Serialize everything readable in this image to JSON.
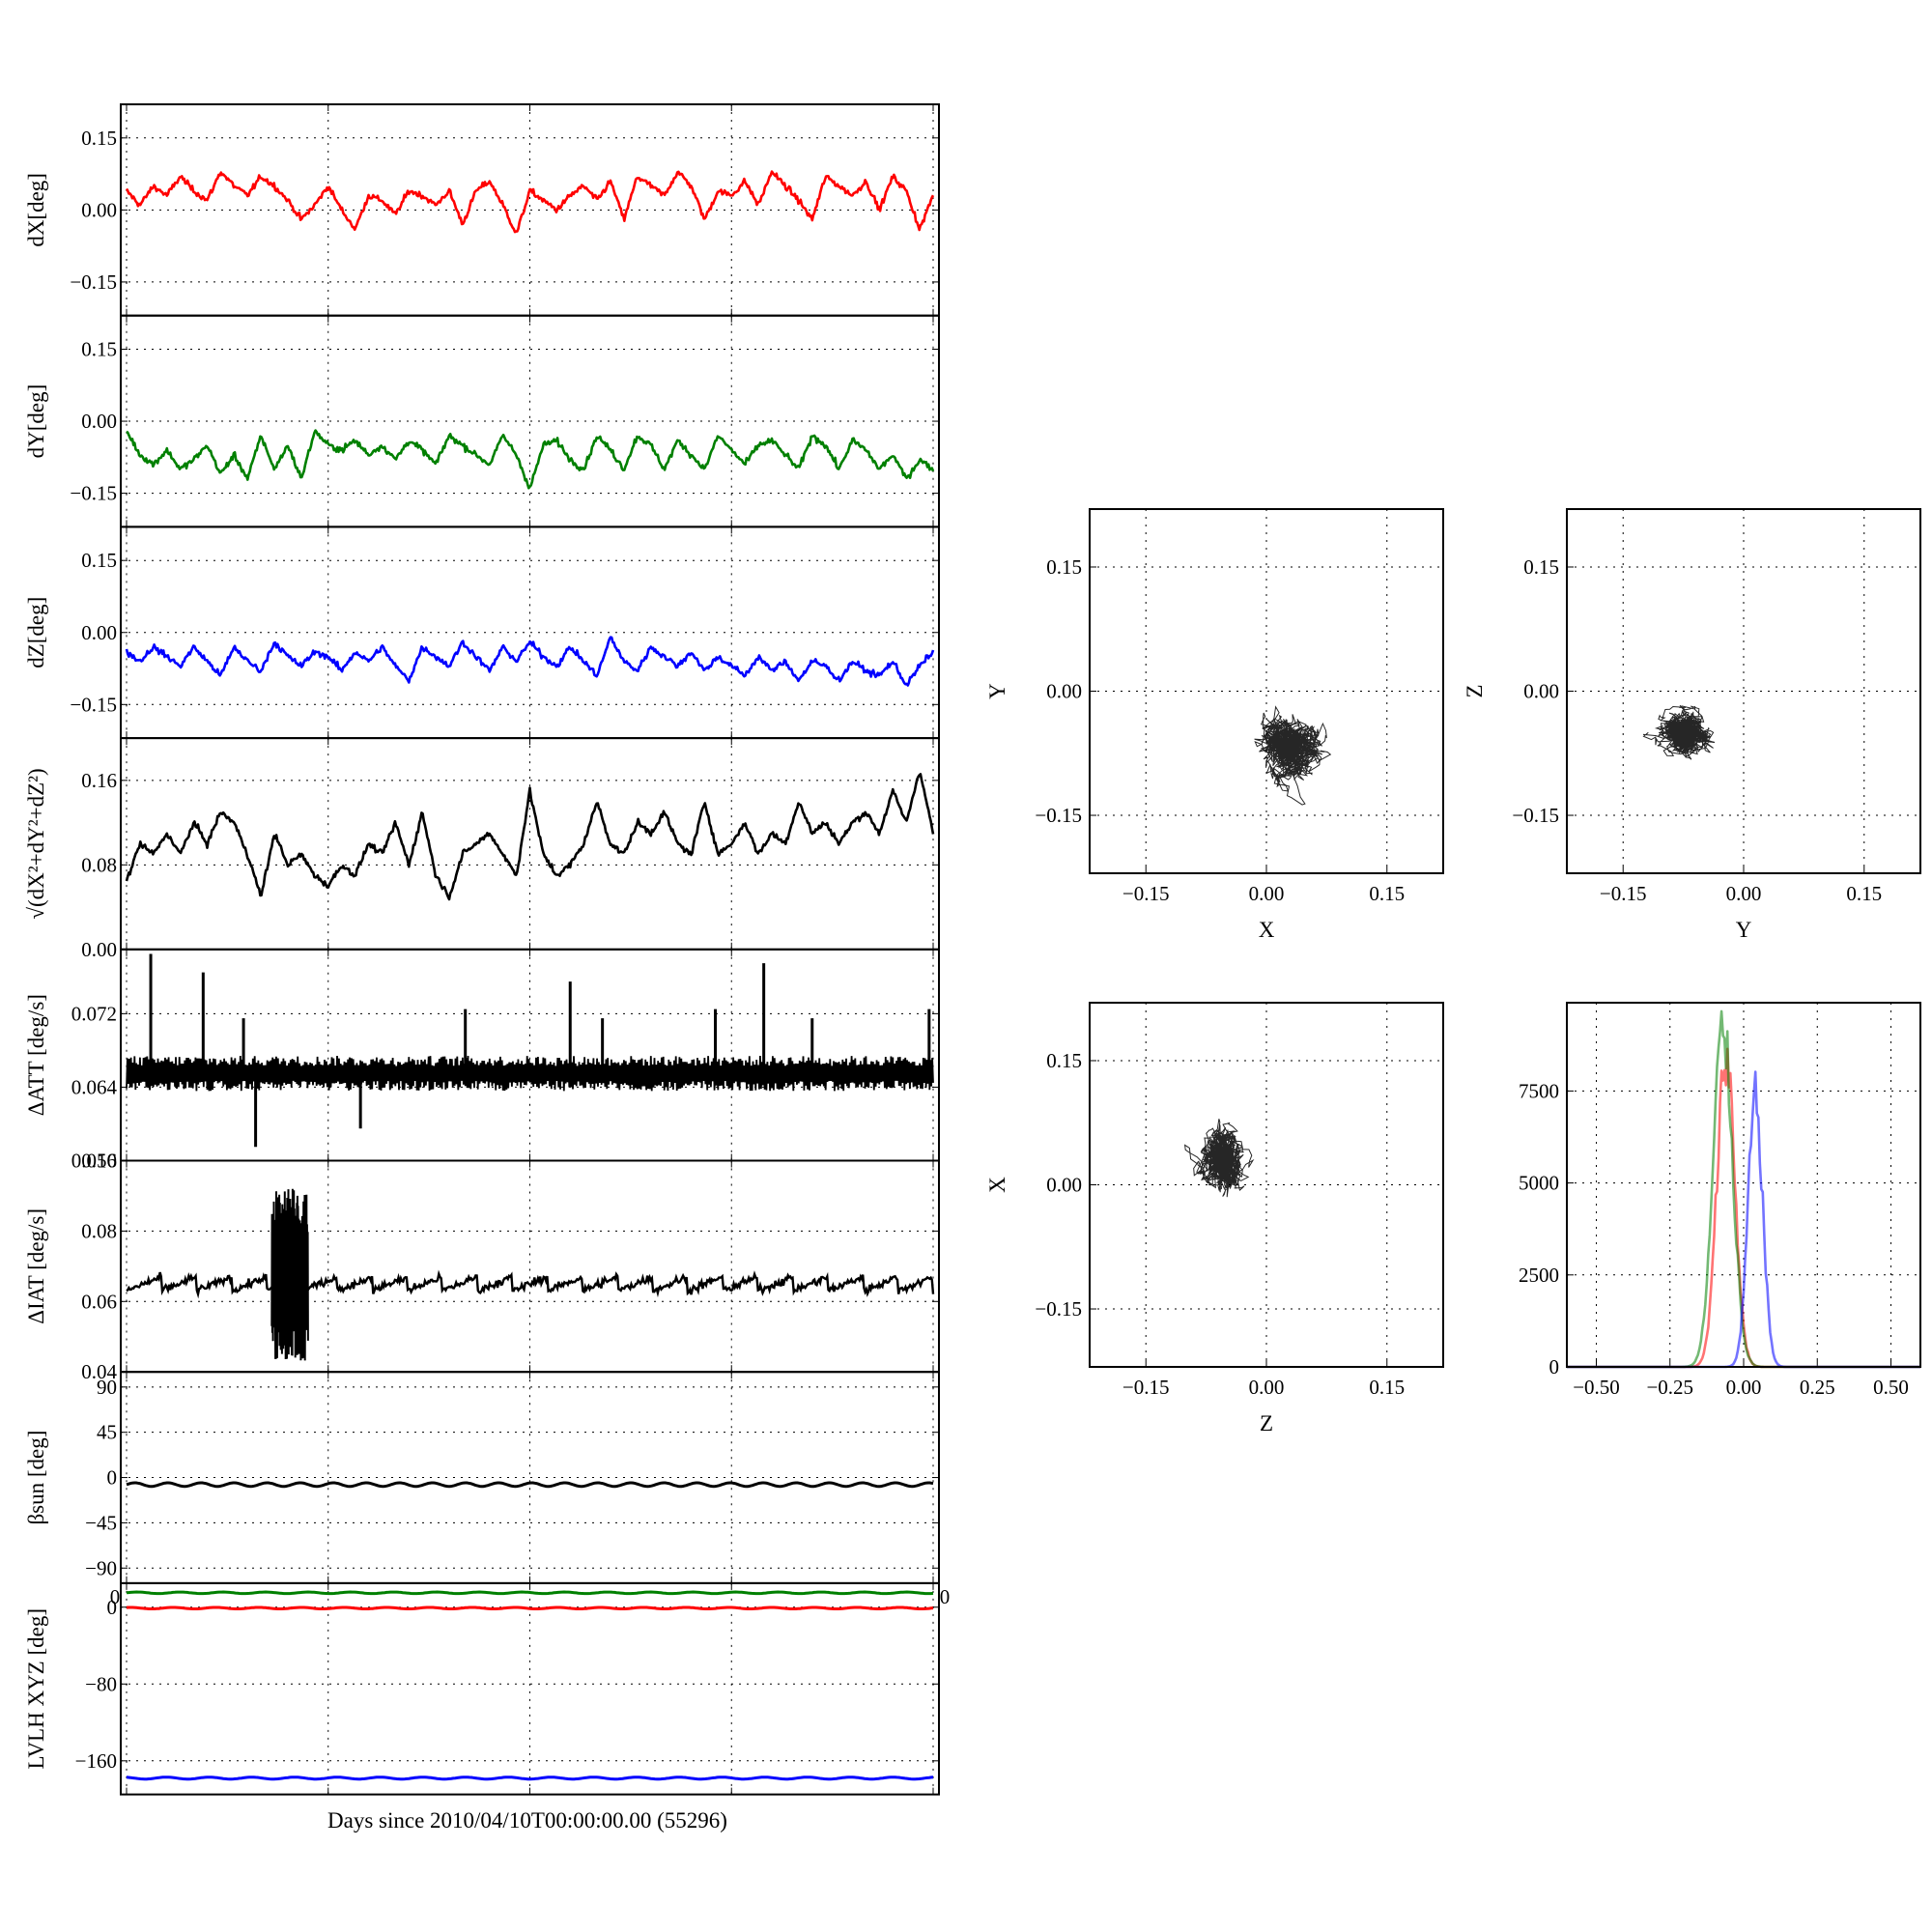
{
  "xlabel": "Days since 2010/04/10T00:00:00.00 (55296)",
  "colors": {
    "x": "#ff0000",
    "y": "#008000",
    "z": "#0000ff",
    "k": "#000000"
  },
  "chart_data": [
    {
      "type": "line",
      "ylabel": "dX[deg]",
      "ylim": [
        -0.22,
        0.22
      ],
      "yticks": [
        0.15,
        0.0,
        -0.15
      ],
      "ytick_labels": [
        "0.15",
        "0.00",
        "−0.15"
      ],
      "grid": true,
      "series": [
        {
          "color": "#ff0000",
          "values": [
            0.04,
            0.01,
            0.05,
            0.03,
            0.07,
            0.04,
            0.02,
            0.08,
            0.05,
            0.03,
            0.07,
            0.05,
            0.02,
            -0.02,
            0.01,
            0.05,
            0.0,
            -0.04,
            0.03,
            0.02,
            -0.01,
            0.04,
            0.03,
            0.01,
            0.04,
            -0.03,
            0.04,
            0.06,
            0.01,
            -0.05,
            0.04,
            0.02,
            0.0,
            0.03,
            0.05,
            0.02,
            0.06,
            -0.02,
            0.07,
            0.05,
            0.03,
            0.08,
            0.05,
            -0.02,
            0.04,
            0.03,
            0.06,
            0.01,
            0.08,
            0.05,
            0.02,
            -0.02,
            0.07,
            0.05,
            0.03,
            0.06,
            0.0,
            0.07,
            0.04,
            -0.04,
            0.03
          ]
        }
      ]
    },
    {
      "type": "line",
      "ylabel": "dY[deg]",
      "ylim": [
        -0.22,
        0.22
      ],
      "yticks": [
        0.15,
        0.0,
        -0.15
      ],
      "ytick_labels": [
        "0.15",
        "0.00",
        "−0.15"
      ],
      "grid": true,
      "series": [
        {
          "color": "#008000",
          "values": [
            -0.02,
            -0.07,
            -0.09,
            -0.06,
            -0.1,
            -0.08,
            -0.05,
            -0.11,
            -0.07,
            -0.12,
            -0.03,
            -0.1,
            -0.05,
            -0.12,
            -0.02,
            -0.05,
            -0.06,
            -0.04,
            -0.07,
            -0.05,
            -0.08,
            -0.04,
            -0.06,
            -0.09,
            -0.03,
            -0.05,
            -0.07,
            -0.09,
            -0.03,
            -0.07,
            -0.14,
            -0.05,
            -0.04,
            -0.08,
            -0.1,
            -0.03,
            -0.06,
            -0.1,
            -0.03,
            -0.05,
            -0.1,
            -0.04,
            -0.07,
            -0.1,
            -0.03,
            -0.06,
            -0.09,
            -0.05,
            -0.04,
            -0.07,
            -0.1,
            -0.03,
            -0.05,
            -0.1,
            -0.04,
            -0.06,
            -0.1,
            -0.07,
            -0.12,
            -0.08,
            -0.1
          ]
        }
      ]
    },
    {
      "type": "line",
      "ylabel": "dZ[deg]",
      "ylim": [
        -0.22,
        0.22
      ],
      "yticks": [
        0.15,
        0.0,
        -0.15
      ],
      "ytick_labels": [
        "0.15",
        "0.00",
        "−0.15"
      ],
      "grid": true,
      "series": [
        {
          "color": "#0000ff",
          "values": [
            -0.04,
            -0.06,
            -0.03,
            -0.05,
            -0.07,
            -0.03,
            -0.06,
            -0.09,
            -0.03,
            -0.06,
            -0.08,
            -0.02,
            -0.05,
            -0.07,
            -0.04,
            -0.05,
            -0.08,
            -0.04,
            -0.06,
            -0.03,
            -0.07,
            -0.1,
            -0.03,
            -0.05,
            -0.07,
            -0.02,
            -0.05,
            -0.08,
            -0.03,
            -0.06,
            -0.02,
            -0.05,
            -0.07,
            -0.03,
            -0.06,
            -0.09,
            -0.01,
            -0.06,
            -0.08,
            -0.03,
            -0.05,
            -0.07,
            -0.04,
            -0.08,
            -0.05,
            -0.07,
            -0.09,
            -0.05,
            -0.08,
            -0.06,
            -0.1,
            -0.06,
            -0.07,
            -0.1,
            -0.06,
            -0.08,
            -0.09,
            -0.06,
            -0.11,
            -0.07,
            -0.04
          ]
        }
      ]
    },
    {
      "type": "line",
      "ylabel": "√(dX²+dY²+dZ²)",
      "ylim": [
        0.0,
        0.2
      ],
      "yticks": [
        0.16,
        0.08,
        0.0
      ],
      "ytick_labels": [
        "0.16",
        "0.08",
        "0.00"
      ],
      "grid": true,
      "series": [
        {
          "color": "#000000",
          "values": [
            0.065,
            0.1,
            0.09,
            0.11,
            0.09,
            0.12,
            0.1,
            0.13,
            0.12,
            0.09,
            0.05,
            0.11,
            0.08,
            0.09,
            0.07,
            0.06,
            0.08,
            0.07,
            0.1,
            0.09,
            0.12,
            0.08,
            0.13,
            0.07,
            0.05,
            0.09,
            0.1,
            0.11,
            0.09,
            0.07,
            0.15,
            0.09,
            0.07,
            0.08,
            0.1,
            0.14,
            0.1,
            0.09,
            0.12,
            0.11,
            0.13,
            0.1,
            0.09,
            0.14,
            0.09,
            0.1,
            0.12,
            0.09,
            0.11,
            0.1,
            0.14,
            0.11,
            0.12,
            0.1,
            0.12,
            0.13,
            0.11,
            0.15,
            0.12,
            0.17,
            0.11
          ]
        }
      ]
    },
    {
      "type": "line",
      "ylabel": "ΔATT [deg/s]",
      "ylim": [
        0.056,
        0.079
      ],
      "yticks": [
        0.072,
        0.064,
        0.056
      ],
      "ytick_labels": [
        "0.072",
        "0.064",
        "0.056"
      ],
      "grid": true,
      "baseline": 0.0655,
      "band": 0.0016,
      "series": [
        {
          "color": "#000000",
          "spikes": [
            {
              "day": 3,
              "value": 0.0785
            },
            {
              "day": 9.5,
              "value": 0.0765
            },
            {
              "day": 14.5,
              "value": 0.0715
            },
            {
              "day": 16,
              "value": 0.0575
            },
            {
              "day": 29,
              "value": 0.0595
            },
            {
              "day": 42,
              "value": 0.0725
            },
            {
              "day": 55,
              "value": 0.0755
            },
            {
              "day": 59,
              "value": 0.0715
            },
            {
              "day": 73,
              "value": 0.0725
            },
            {
              "day": 79,
              "value": 0.0775
            },
            {
              "day": 85,
              "value": 0.0715
            },
            {
              "day": 99.5,
              "value": 0.0725
            }
          ]
        }
      ]
    },
    {
      "type": "line",
      "ylabel": "ΔIAT [deg/s]",
      "ylim": [
        0.04,
        0.1
      ],
      "yticks": [
        0.1,
        0.08,
        0.06,
        0.04
      ],
      "ytick_labels": [
        "0.10",
        "0.08",
        "0.06",
        "0.04"
      ],
      "grid": true,
      "baseline": 0.065,
      "series": [
        {
          "color": "#000000",
          "burst": {
            "start": 18,
            "end": 22.5,
            "high": 0.092,
            "low": 0.043
          }
        }
      ]
    },
    {
      "type": "line",
      "ylabel": "βsun [deg]",
      "ylim": [
        -105,
        105
      ],
      "yticks": [
        90,
        45,
        0,
        -45,
        -90
      ],
      "ytick_labels": [
        "90",
        "45",
        "0",
        "−45",
        "−90"
      ],
      "grid": true,
      "series": [
        {
          "color": "#000000",
          "mean": -7,
          "amplitude": 1.8,
          "period_days": 4.1
        }
      ]
    },
    {
      "type": "line",
      "ylabel": "LVLH XYZ [deg]",
      "ylim": [
        -195,
        25
      ],
      "yticks": [
        0,
        -80,
        -160
      ],
      "ytick_labels": [
        "0",
        "−80",
        "−160"
      ],
      "xtick_labels_visible": [
        "0",
        "0"
      ],
      "grid": true,
      "series": [
        {
          "color": "#008000",
          "mean": 15,
          "amplitude": 0.8
        },
        {
          "color": "#ff0000",
          "mean": -1,
          "amplitude": 0.8
        },
        {
          "color": "#0000ff",
          "mean": -178,
          "amplitude": 1.0
        }
      ]
    },
    {
      "type": "scatter",
      "xlabel": "X",
      "ylabel": "Y",
      "xlim": [
        -0.22,
        0.22
      ],
      "ylim": [
        -0.22,
        0.22
      ],
      "ticks": [
        "−0.15",
        "0.00",
        "0.15"
      ],
      "grid": true,
      "center": [
        0.03,
        -0.06
      ],
      "spread": [
        0.045,
        0.045
      ]
    },
    {
      "type": "scatter",
      "xlabel": "Y",
      "ylabel": "Z",
      "xlim": [
        -0.22,
        0.22
      ],
      "ylim": [
        -0.22,
        0.22
      ],
      "ticks": [
        "−0.15",
        "0.00",
        "0.15"
      ],
      "grid": true,
      "center": [
        -0.07,
        -0.05
      ],
      "spread": [
        0.04,
        0.03
      ]
    },
    {
      "type": "scatter",
      "xlabel": "Z",
      "ylabel": "X",
      "xlim": [
        -0.22,
        0.22
      ],
      "ylim": [
        -0.22,
        0.22
      ],
      "ticks": [
        "−0.15",
        "0.00",
        "0.15"
      ],
      "grid": true,
      "center": [
        -0.05,
        0.03
      ],
      "spread": [
        0.03,
        0.045
      ]
    },
    {
      "type": "bar",
      "histogram": true,
      "xlim": [
        -0.6,
        0.6
      ],
      "ylim": [
        0,
        9900
      ],
      "xtick_labels": [
        "−0.50",
        "−0.25",
        "0.00",
        "0.25",
        "0.50"
      ],
      "ytick_labels": [
        "7500",
        "5000",
        "2500",
        "0"
      ],
      "grid": true,
      "series": [
        {
          "color": "#ff0000",
          "mean": -0.06,
          "std": 0.03,
          "peak": 8500
        },
        {
          "color": "#008000",
          "mean": -0.07,
          "std": 0.033,
          "peak": 9200
        },
        {
          "color": "#0000ff",
          "mean": 0.04,
          "std": 0.025,
          "peak": 7300
        }
      ]
    }
  ]
}
